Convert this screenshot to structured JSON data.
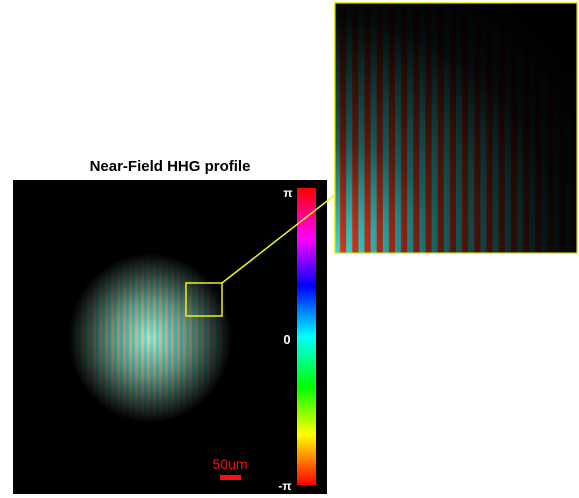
{
  "title": "Near-Field HHG profile",
  "colorbar": {
    "top_label": "π",
    "middle_label": "0",
    "bottom_label": "-π"
  },
  "scale_bar": {
    "label": "50um"
  }
}
